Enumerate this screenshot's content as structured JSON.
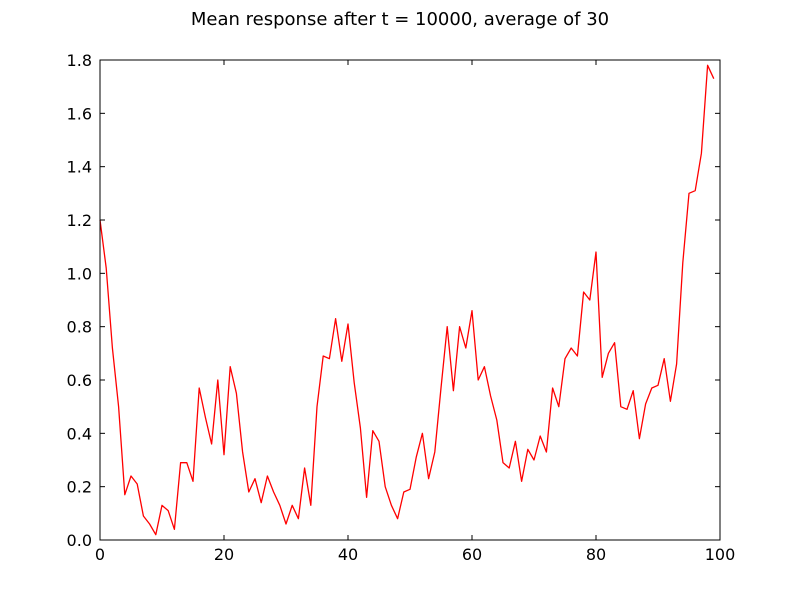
{
  "chart_data": {
    "type": "line",
    "title": "Mean response after t = 10000, average of 30",
    "xlabel": "",
    "ylabel": "",
    "xlim": [
      0,
      100
    ],
    "ylim": [
      0,
      1.8
    ],
    "grid": false,
    "xticks": [
      0,
      20,
      40,
      60,
      80,
      100
    ],
    "yticks": [
      0.0,
      0.2,
      0.4,
      0.6,
      0.8,
      1.0,
      1.2,
      1.4,
      1.6,
      1.8
    ],
    "xtick_labels": [
      "0",
      "20",
      "40",
      "60",
      "80",
      "100"
    ],
    "ytick_labels": [
      "0.0",
      "0.2",
      "0.4",
      "0.6",
      "0.8",
      "1.0",
      "1.2",
      "1.4",
      "1.6",
      "1.8"
    ],
    "series": [
      {
        "color": "#ff0000",
        "x": [
          0,
          1,
          2,
          3,
          4,
          5,
          6,
          7,
          8,
          9,
          10,
          11,
          12,
          13,
          14,
          15,
          16,
          17,
          18,
          19,
          20,
          21,
          22,
          23,
          24,
          25,
          26,
          27,
          28,
          29,
          30,
          31,
          32,
          33,
          34,
          35,
          36,
          37,
          38,
          39,
          40,
          41,
          42,
          43,
          44,
          45,
          46,
          47,
          48,
          49,
          50,
          51,
          52,
          53,
          54,
          55,
          56,
          57,
          58,
          59,
          60,
          61,
          62,
          63,
          64,
          65,
          66,
          67,
          68,
          69,
          70,
          71,
          72,
          73,
          74,
          75,
          76,
          77,
          78,
          79,
          80,
          81,
          82,
          83,
          84,
          85,
          86,
          87,
          88,
          89,
          90,
          91,
          92,
          93,
          94,
          95,
          96,
          97,
          98,
          99
        ],
        "y": [
          1.2,
          1.02,
          0.72,
          0.5,
          0.17,
          0.24,
          0.21,
          0.09,
          0.06,
          0.02,
          0.13,
          0.11,
          0.04,
          0.29,
          0.29,
          0.22,
          0.57,
          0.46,
          0.36,
          0.6,
          0.32,
          0.65,
          0.55,
          0.33,
          0.18,
          0.23,
          0.14,
          0.24,
          0.18,
          0.13,
          0.06,
          0.13,
          0.08,
          0.27,
          0.13,
          0.5,
          0.69,
          0.68,
          0.83,
          0.67,
          0.81,
          0.59,
          0.42,
          0.16,
          0.41,
          0.37,
          0.2,
          0.13,
          0.08,
          0.18,
          0.19,
          0.31,
          0.4,
          0.23,
          0.33,
          0.57,
          0.8,
          0.56,
          0.8,
          0.72,
          0.86,
          0.6,
          0.65,
          0.54,
          0.45,
          0.29,
          0.27,
          0.37,
          0.22,
          0.34,
          0.3,
          0.39,
          0.33,
          0.57,
          0.5,
          0.68,
          0.72,
          0.69,
          0.93,
          0.9,
          1.08,
          0.61,
          0.7,
          0.74,
          0.5,
          0.49,
          0.56,
          0.38,
          0.51,
          0.57,
          0.58,
          0.68,
          0.52,
          0.66,
          1.04,
          1.3,
          1.31,
          1.45,
          1.78,
          1.73
        ]
      }
    ]
  }
}
